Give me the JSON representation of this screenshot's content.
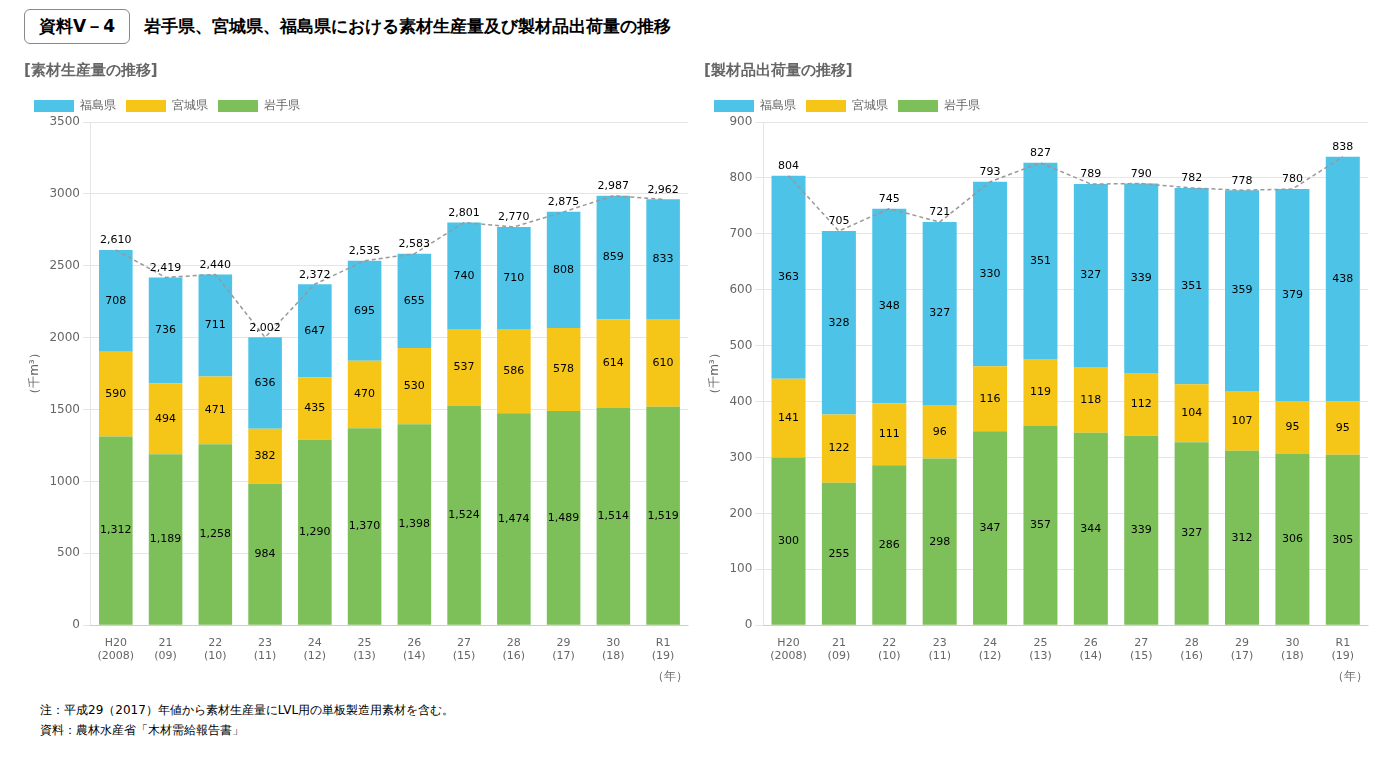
{
  "title": "資料V－4",
  "subtitle": "岩手県、宮城県、福島県における素材生産量及び製材品出荷量の推移",
  "annotations": [
    "注：平成29（2017）年値から素材生産量にLVL用の単板製造用素材を含む。",
    "資料：農林水産省「木材需給報告書」"
  ],
  "chart_data": [
    {
      "type": "bar",
      "title": "[素材生産量の推移]",
      "x_label": "（年）",
      "y_label": "（千m³）",
      "categories": [
        "H20\n(2008)",
        "21\n(09)",
        "22\n(10)",
        "23\n(11)",
        "24\n(12)",
        "25\n(13)",
        "26\n(14)",
        "27\n(15)",
        "28\n(16)",
        "29\n(17)",
        "30\n(18)",
        "R1\n(19)"
      ],
      "stacked": true,
      "data_labels": true,
      "grid": true,
      "legend": "upper left",
      "ylim": [
        0,
        3500
      ],
      "yticks": [
        0,
        500,
        1000,
        1500,
        2000,
        2500,
        3000,
        3500
      ],
      "series": [
        {
          "name": "岩手県",
          "color": "#7DC05A",
          "values": [
            1312,
            1189,
            1258,
            984,
            1290,
            1370,
            1398,
            1524,
            1474,
            1489,
            1514,
            1519
          ],
          "value_labels": [
            "1,312",
            "1,189",
            "1,258",
            "984",
            "1,290",
            "1,370",
            "1,398",
            "1,524",
            "1,474",
            "1,489",
            "1,514",
            "1,519"
          ]
        },
        {
          "name": "宮城県",
          "color": "#F5C518",
          "values": [
            590,
            494,
            471,
            382,
            435,
            470,
            530,
            537,
            586,
            578,
            614,
            610
          ]
        },
        {
          "name": "福島県",
          "color": "#4DC3E8",
          "values": [
            708,
            736,
            711,
            636,
            647,
            695,
            655,
            740,
            710,
            808,
            859,
            833
          ]
        },
        {
          "type": "line",
          "line_style": "dashed",
          "color": "#999999",
          "values": [
            2610,
            2419,
            2440,
            2002,
            2372,
            2535,
            2583,
            2801,
            2770,
            2875,
            2987,
            2962
          ],
          "value_labels": [
            "2,610",
            "2,419",
            "2,440",
            "2,002",
            "2,372",
            "2,535",
            "2,583",
            "2,801",
            "2,770",
            "2,875",
            "2,987",
            "2,962"
          ]
        }
      ]
    },
    {
      "type": "bar",
      "title": "[製材品出荷量の推移]",
      "x_label": "（年）",
      "y_label": "（千m³）",
      "categories": [
        "H20\n(2008)",
        "21\n(09)",
        "22\n(10)",
        "23\n(11)",
        "24\n(12)",
        "25\n(13)",
        "26\n(14)",
        "27\n(15)",
        "28\n(16)",
        "29\n(17)",
        "30\n(18)",
        "R1\n(19)"
      ],
      "stacked": true,
      "data_labels": true,
      "grid": true,
      "legend": "upper left",
      "ylim": [
        0,
        900
      ],
      "yticks": [
        0,
        100,
        200,
        300,
        400,
        500,
        600,
        700,
        800,
        900
      ],
      "series": [
        {
          "name": "岩手県",
          "color": "#7DC05A",
          "values": [
            300,
            255,
            286,
            298,
            347,
            357,
            344,
            339,
            327,
            312,
            306,
            305
          ]
        },
        {
          "name": "宮城県",
          "color": "#F5C518",
          "values": [
            141,
            122,
            111,
            96,
            116,
            119,
            118,
            112,
            104,
            107,
            95,
            95
          ]
        },
        {
          "name": "福島県",
          "color": "#4DC3E8",
          "values": [
            363,
            328,
            348,
            327,
            330,
            351,
            327,
            339,
            351,
            359,
            379,
            438
          ]
        },
        {
          "type": "line",
          "line_style": "dashed",
          "color": "#999999",
          "values": [
            804,
            705,
            745,
            721,
            793,
            827,
            789,
            790,
            782,
            778,
            780,
            838
          ]
        }
      ]
    }
  ]
}
